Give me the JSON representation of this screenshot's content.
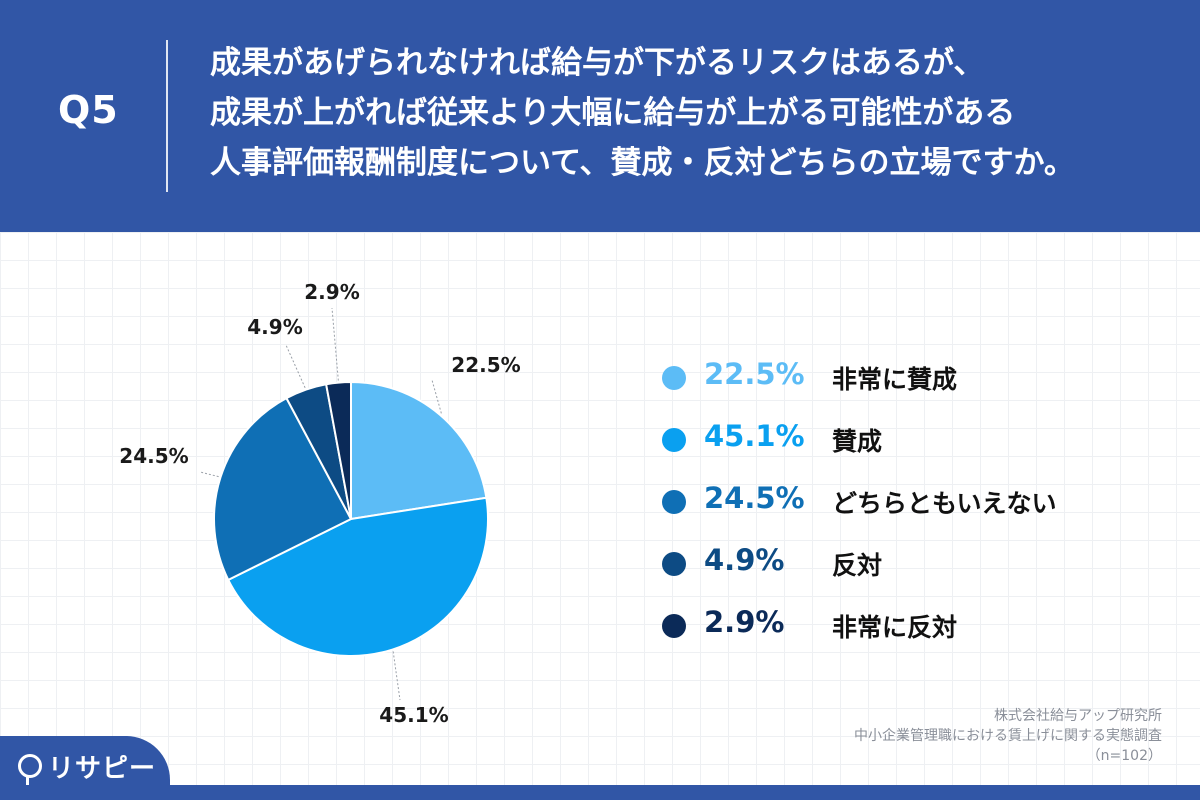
{
  "question": {
    "label": "Q5",
    "lines": [
      "成果があげられなければ給与が下がるリスクはあるが、",
      "成果が上がれば従来より大幅に給与が上がる可能性がある",
      "人事評価報酬制度について、賛成・反対どちらの立場ですか。"
    ]
  },
  "chart_data": {
    "type": "pie",
    "unit": "%",
    "slices": [
      {
        "label": "非常に賛成",
        "value": 22.5,
        "display": "22.5%",
        "color": "#5cbcf6"
      },
      {
        "label": "賛成",
        "value": 45.1,
        "display": "45.1%",
        "color": "#0aa0f0"
      },
      {
        "label": "どちらともいえない",
        "value": 24.5,
        "display": "24.5%",
        "color": "#0f6fb5"
      },
      {
        "label": "反対",
        "value": 4.9,
        "display": "4.9%",
        "color": "#0d4b84"
      },
      {
        "label": "非常に反対",
        "value": 2.9,
        "display": "2.9%",
        "color": "#0b2a58"
      }
    ],
    "legend_position": "right"
  },
  "source": {
    "company": "株式会社給与アップ研究所",
    "survey": "中小企業管理職における賃上げに関する実態調査",
    "sample": "（n=102）"
  },
  "logo": {
    "text": "リサピー",
    "icon": "pin-icon"
  }
}
